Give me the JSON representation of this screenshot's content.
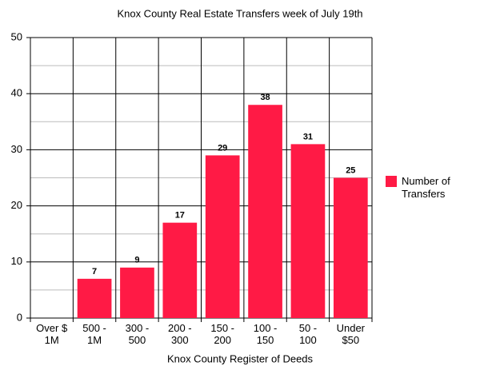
{
  "chart_data": {
    "type": "bar",
    "title": "Knox County Real Estate Transfers week of July 19th",
    "x_label": "Knox County Register of Deeds",
    "categories": [
      "Over $\n1M",
      "500 -\n1M",
      "300 -\n500",
      "200 -\n300",
      "150 -\n200",
      "100 -\n150",
      "50 -\n100",
      "Under\n$50"
    ],
    "series": [
      {
        "name": "Number of Transfers",
        "color": "#ff1a45",
        "values": [
          0,
          7,
          9,
          17,
          29,
          38,
          31,
          25
        ],
        "value_labels": [
          null,
          "7",
          "9",
          "17",
          "29",
          "38",
          "31",
          "25"
        ]
      }
    ],
    "ylim": [
      0,
      50
    ],
    "yticks": [
      0,
      10,
      20,
      30,
      40,
      50
    ],
    "grid": true,
    "legend": "right"
  }
}
